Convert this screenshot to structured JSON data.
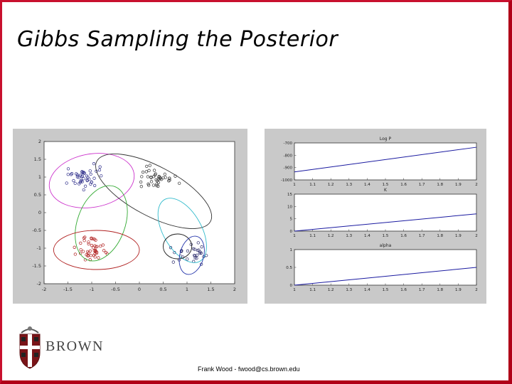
{
  "slide": {
    "title": "Gibbs Sampling the Posterior",
    "footer": "Frank Wood - fwood@cs.brown.edu",
    "logo_text": "BROWN",
    "colors": {
      "frame": "#c8102e",
      "panel": "#c9c9c9",
      "line": "#1a1aa0"
    }
  },
  "chart_data": [
    {
      "type": "scatter",
      "title": "",
      "xlabel": "",
      "ylabel": "",
      "xlim": [
        -2,
        2
      ],
      "ylim": [
        -2,
        2
      ],
      "xticks": [
        "-2",
        "-1.5",
        "-1",
        "-0.5",
        "0",
        "0.5",
        "1",
        "1.5",
        "2"
      ],
      "yticks": [
        "2",
        "1.5",
        "1",
        "0.5",
        "0",
        "-0.5",
        "-1",
        "-1.5",
        "-2"
      ],
      "clusters": [
        {
          "color": "#2e2e8a",
          "cx": -1.1,
          "cy": 1.0,
          "n": 45
        },
        {
          "color": "#333333",
          "cx": 0.4,
          "cy": 1.0,
          "n": 40
        },
        {
          "color": "#b02020",
          "cx": -1.0,
          "cy": -1.0,
          "n": 45
        },
        {
          "color": "#2a2a6a",
          "cx": 1.1,
          "cy": -1.2,
          "n": 30
        }
      ],
      "ellipses": [
        {
          "color": "#cc33cc",
          "cx": -1.0,
          "cy": 0.9,
          "rx": 0.9,
          "ry": 0.75,
          "angle": 10
        },
        {
          "color": "#333333",
          "cx": 0.3,
          "cy": 0.6,
          "rx": 1.35,
          "ry": 0.7,
          "angle": -28
        },
        {
          "color": "#33aa33",
          "cx": -0.8,
          "cy": -0.3,
          "rx": 0.5,
          "ry": 1.1,
          "angle": -20
        },
        {
          "color": "#b02020",
          "cx": -0.9,
          "cy": -1.05,
          "rx": 0.9,
          "ry": 0.55,
          "angle": 0
        },
        {
          "color": "#33bbcc",
          "cx": 0.9,
          "cy": -0.5,
          "rx": 0.4,
          "ry": 1.0,
          "angle": 30
        },
        {
          "color": "#1a1a1a",
          "cx": 0.8,
          "cy": -0.95,
          "rx": 0.3,
          "ry": 0.35,
          "angle": 0
        },
        {
          "color": "#2233aa",
          "cx": 1.1,
          "cy": -1.2,
          "rx": 0.25,
          "ry": 0.55,
          "angle": -15
        }
      ]
    },
    {
      "type": "line",
      "title": "Log P",
      "xlim": [
        1,
        2
      ],
      "ylim": [
        -1000,
        -700
      ],
      "x": [
        1,
        2
      ],
      "series": [
        {
          "values": [
            -935,
            -735
          ]
        }
      ],
      "xticks": [
        "1",
        "1.1",
        "1.2",
        "1.3",
        "1.4",
        "1.5",
        "1.6",
        "1.7",
        "1.8",
        "1.9",
        "2"
      ],
      "yticks": [
        "-700",
        "-800",
        "-900",
        "-1000"
      ]
    },
    {
      "type": "line",
      "title": "K",
      "xlim": [
        1,
        2
      ],
      "ylim": [
        0,
        15
      ],
      "x": [
        1,
        2
      ],
      "series": [
        {
          "values": [
            0,
            7
          ]
        }
      ],
      "xticks": [
        "1",
        "1.1",
        "1.2",
        "1.3",
        "1.4",
        "1.5",
        "1.6",
        "1.7",
        "1.8",
        "1.9",
        "2"
      ],
      "yticks": [
        "15",
        "10",
        "5",
        "0"
      ]
    },
    {
      "type": "line",
      "title": "alpha",
      "xlim": [
        1,
        2
      ],
      "ylim": [
        0,
        1
      ],
      "x": [
        1,
        2
      ],
      "series": [
        {
          "values": [
            0,
            0.5
          ]
        }
      ],
      "xticks": [
        "1",
        "1.1",
        "1.2",
        "1.3",
        "1.4",
        "1.5",
        "1.6",
        "1.7",
        "1.8",
        "1.9",
        "2"
      ],
      "yticks": [
        "1",
        "0.5",
        "0"
      ]
    }
  ]
}
